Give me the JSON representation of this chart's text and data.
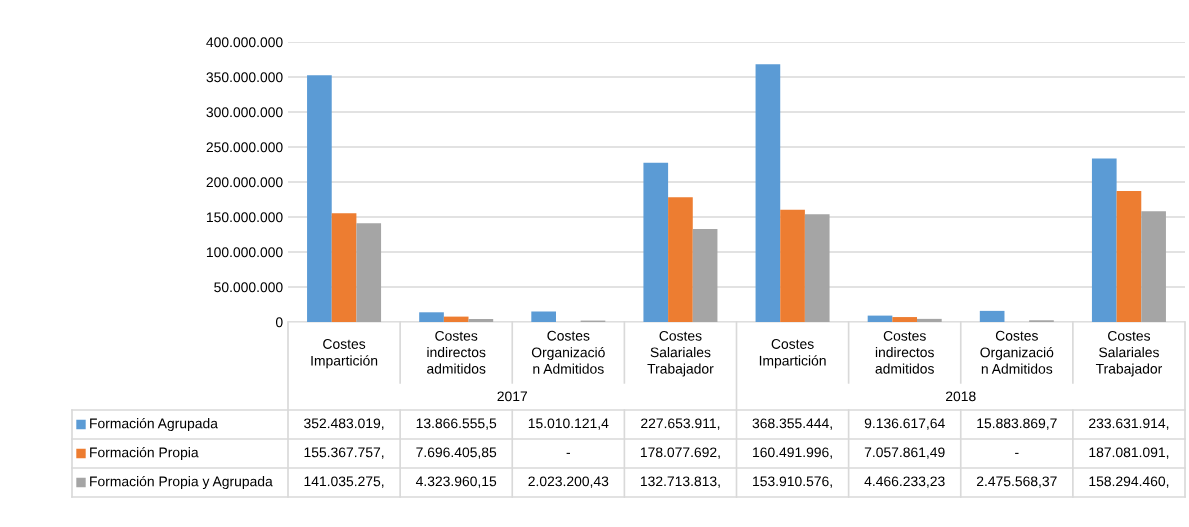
{
  "chart_data": {
    "type": "bar",
    "categories": [
      "Costes\nImpartición",
      "Costes\nindirectos\nadmitidos",
      "Costes\nOrganizació\nn Admitidos",
      "Costes\nSalariales\nTrabajador",
      "Costes\nImpartición",
      "Costes\nindirectos\nadmitidos",
      "Costes\nOrganizació\nn Admitidos",
      "Costes\nSalariales\nTrabajador"
    ],
    "annotations": [
      "2017",
      "2018"
    ],
    "series": [
      {
        "name": "Formación Agrupada",
        "color": "#5b9bd5",
        "values": [
          352483019,
          13866555.5,
          15010121.4,
          227653911,
          368355444,
          9136617.64,
          15883869.7,
          233631914
        ],
        "value_labels": [
          "352.483.019,",
          "13.866.555,5",
          "15.010.121,4",
          "227.653.911,",
          "368.355.444,",
          "9.136.617,64",
          "15.883.869,7",
          "233.631.914,"
        ]
      },
      {
        "name": "Formación Propia",
        "color": "#ed7d31",
        "values": [
          155367757,
          7696405.85,
          null,
          178077692,
          160491996,
          7057861.49,
          null,
          187081091
        ],
        "value_labels": [
          "155.367.757,",
          "7.696.405,85",
          "-",
          "178.077.692,",
          "160.491.996,",
          "7.057.861,49",
          "-",
          "187.081.091,"
        ]
      },
      {
        "name": "Formación Propia y Agrupada",
        "color": "#a5a5a5",
        "values": [
          141035275,
          4323960.15,
          2023200.43,
          132713813,
          153910576,
          4466233.23,
          2475568.37,
          158294460
        ],
        "value_labels": [
          "141.035.275,",
          "4.323.960,15",
          "2.023.200,43",
          "132.713.813,",
          "153.910.576,",
          "4.466.233,23",
          "2.475.568,37",
          "158.294.460,"
        ]
      }
    ],
    "ylim": [
      0,
      400000000
    ],
    "yticks": [
      0,
      {
        "value": 50000000,
        "label": "50.000.000"
      },
      {
        "value": 100000000,
        "label": "100.000.000"
      },
      {
        "value": 150000000,
        "label": "150.000.000"
      },
      {
        "value": 200000000,
        "label": "200.000.000"
      },
      {
        "value": 250000000,
        "label": "250.000.000"
      },
      {
        "value": 300000000,
        "label": "300.000.000"
      },
      {
        "value": 350000000,
        "label": "350.000.000"
      },
      {
        "value": 400000000,
        "label": "400.000.000"
      }
    ],
    "grid": "y",
    "legend": "bottom left"
  }
}
